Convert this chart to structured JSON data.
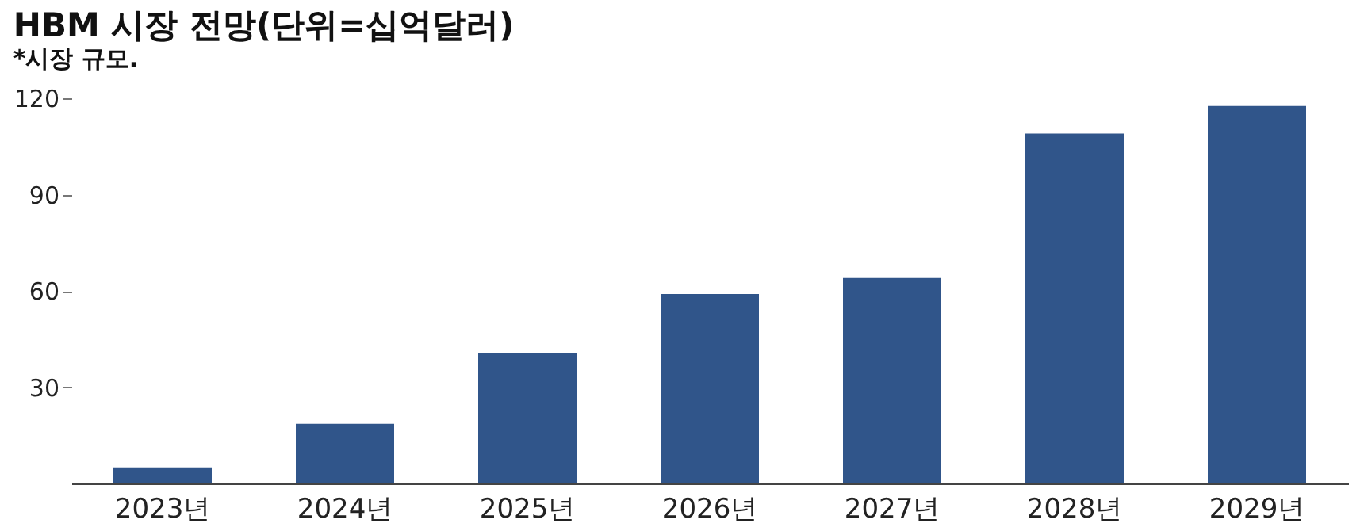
{
  "chart_data": {
    "type": "bar",
    "title": "HBM 시장 전망(단위=십억달러)",
    "subtitle": "*시장 규모.",
    "categories": [
      "2023년",
      "2024년",
      "2025년",
      "2026년",
      "2027년",
      "2028년",
      "2029년"
    ],
    "values": [
      5,
      18.6,
      40.5,
      59,
      64,
      109,
      117.6
    ],
    "color": "#30558a",
    "ylim": [
      0,
      120
    ],
    "yticks": [
      30,
      60,
      90,
      120
    ],
    "grid": false
  }
}
